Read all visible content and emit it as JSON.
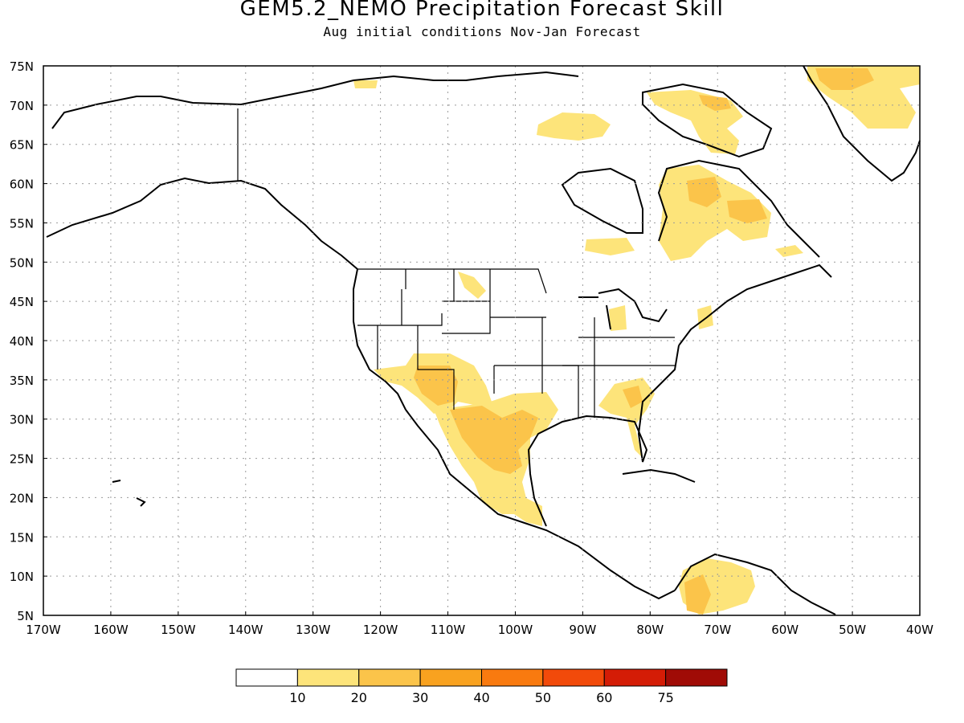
{
  "title": "GEM5.2_NEMO Precipitation Forecast Skill",
  "subtitle": "Aug initial conditions  Nov-Jan Forecast",
  "map": {
    "lon_range": [
      -170,
      -40
    ],
    "lat_range": [
      5,
      75
    ],
    "lat_ticks": [
      "75N",
      "70N",
      "65N",
      "60N",
      "55N",
      "50N",
      "45N",
      "40N",
      "35N",
      "30N",
      "25N",
      "20N",
      "15N",
      "10N",
      "5N"
    ],
    "lon_ticks": [
      "170W",
      "160W",
      "150W",
      "140W",
      "130W",
      "120W",
      "110W",
      "100W",
      "90W",
      "80W",
      "70W",
      "60W",
      "50W",
      "40W"
    ],
    "grid": "dotted",
    "region": "North America"
  },
  "colorbar": {
    "labels": [
      "10",
      "20",
      "30",
      "40",
      "50",
      "60",
      "75"
    ],
    "colors": [
      "#ffffff",
      "#fde47a",
      "#fbc44a",
      "#f9a21f",
      "#f97a0f",
      "#f24a0a",
      "#d41c06",
      "#a00b06"
    ]
  },
  "colors": {
    "level_10_20": "#fde47a",
    "level_20_30": "#fbc44a",
    "coastline": "#000000",
    "grid": "#9a9a9a"
  }
}
